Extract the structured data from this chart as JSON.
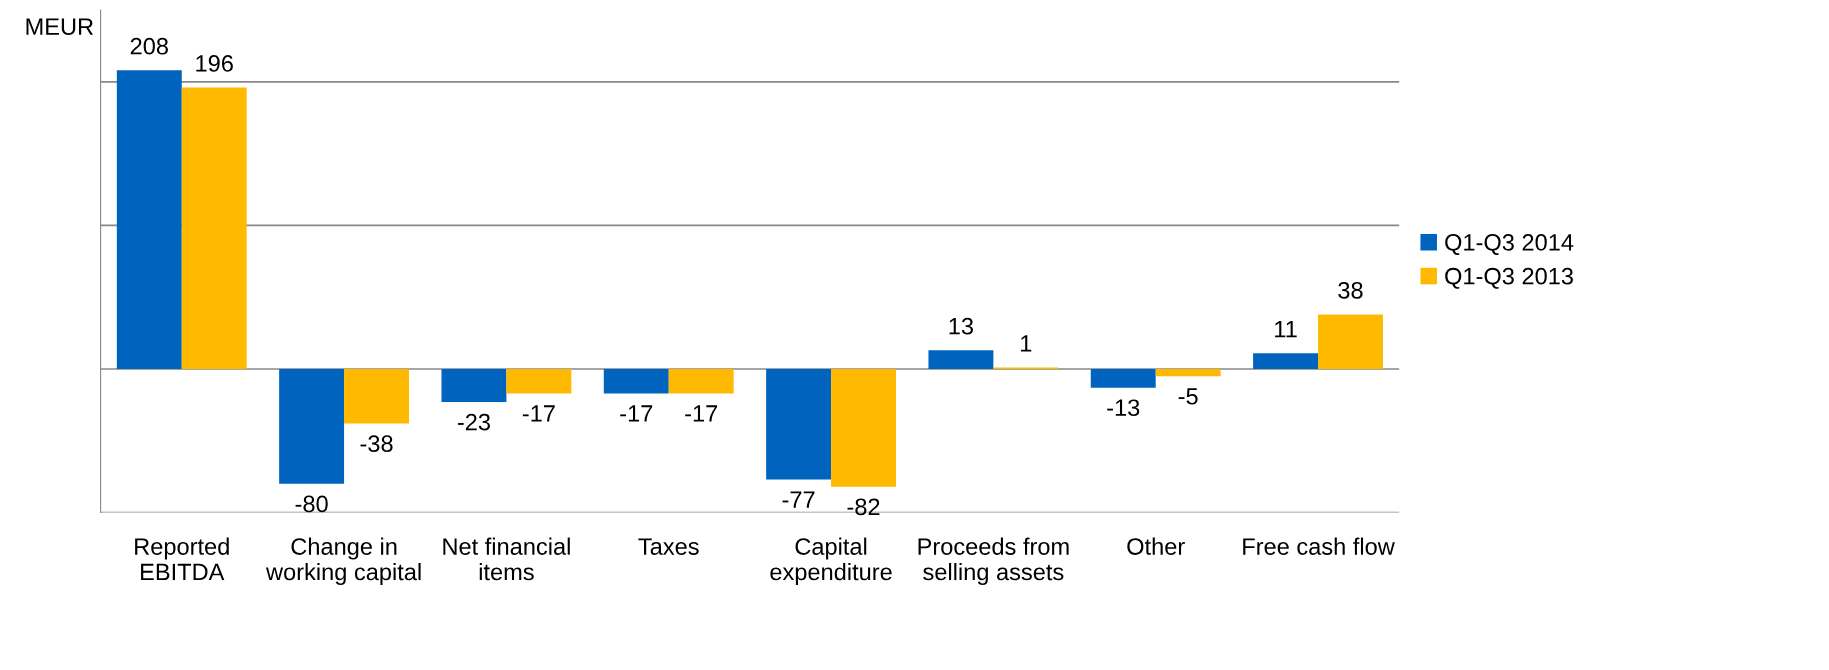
{
  "chart_data": {
    "type": "bar",
    "ylabel": "MEUR",
    "categories": [
      "Reported\nEBITDA",
      "Change in\nworking capital",
      "Net financial\nitems",
      "Taxes",
      "Capital\nexpenditure",
      "Proceeds from\nselling assets",
      "Other",
      "Free cash flow"
    ],
    "series": [
      {
        "name": "Q1-Q3 2014",
        "color": "#0063be",
        "values": [
          208,
          -80,
          -23,
          -17,
          -77,
          13,
          -13,
          11
        ]
      },
      {
        "name": "Q1-Q3 2013",
        "color": "#ffb900",
        "values": [
          196,
          -38,
          -17,
          -17,
          -82,
          1,
          -5,
          38
        ]
      }
    ],
    "ylim": [
      -100,
      250
    ],
    "yticks": [
      {
        "value": -100,
        "label": null
      },
      {
        "value": 0,
        "label": null
      },
      {
        "value": 100,
        "label": null
      },
      {
        "value": 200,
        "label": null
      }
    ],
    "grid": "y",
    "legend": "right",
    "data_labels": true
  }
}
